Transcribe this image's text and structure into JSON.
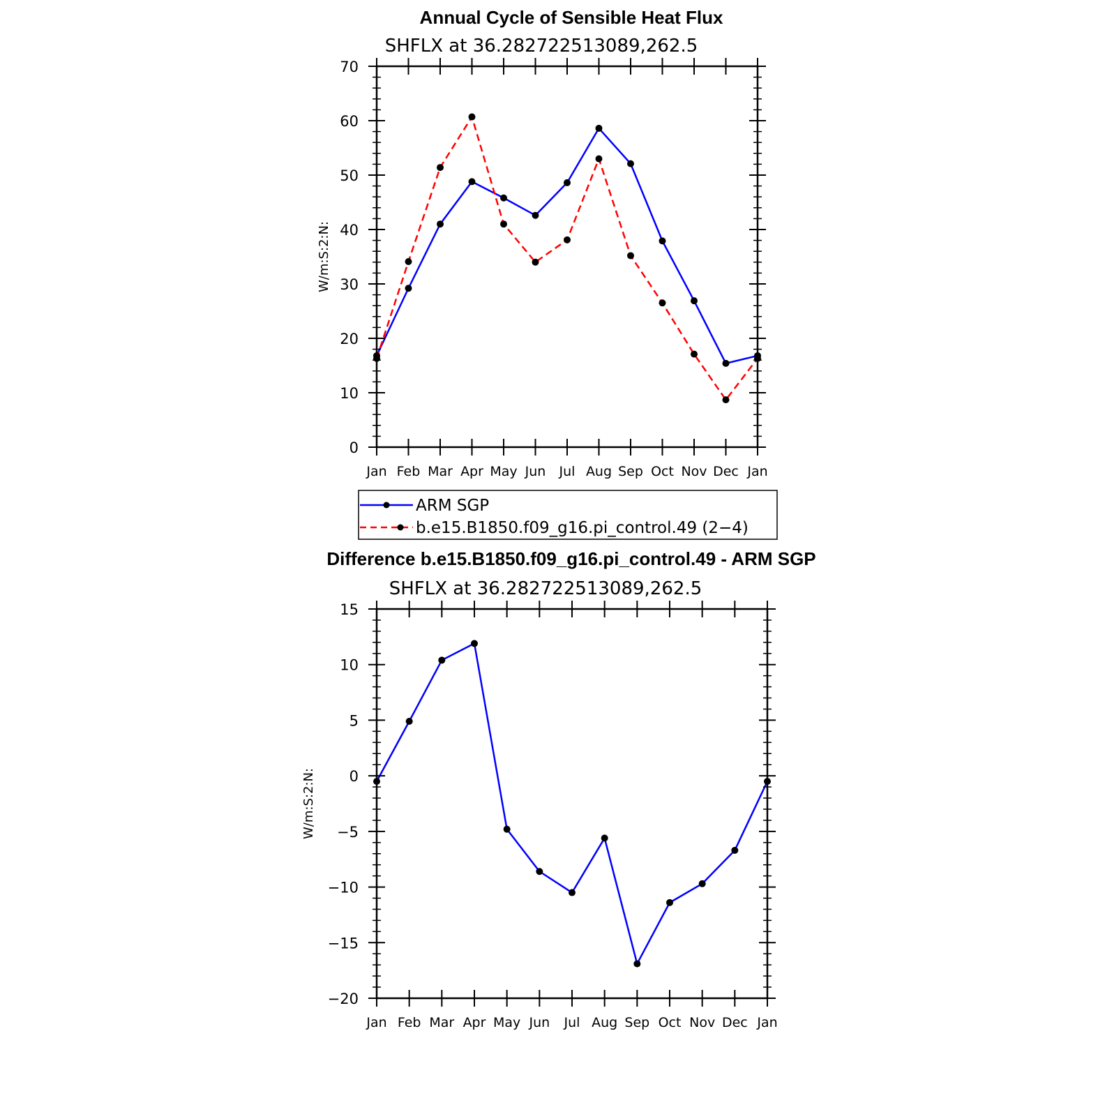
{
  "chart_data": [
    {
      "type": "line",
      "title": "Annual Cycle of Sensible Heat Flux",
      "subtitle": "SHFLX at 36.282722513089,262.5",
      "ylabel": "W/m:S:2:N:",
      "xlabel": "",
      "ylim": [
        0,
        70
      ],
      "yticks": [
        0,
        10,
        20,
        30,
        40,
        50,
        60,
        70
      ],
      "ytick_labels": [
        "0",
        "10",
        "20",
        "30",
        "40",
        "50",
        "60",
        "70"
      ],
      "categories": [
        "Jan",
        "Feb",
        "Mar",
        "Apr",
        "May",
        "Jun",
        "Jul",
        "Aug",
        "Sep",
        "Oct",
        "Nov",
        "Dec",
        "Jan"
      ],
      "series": [
        {
          "name": "ARM SGP",
          "color": "#0000ff",
          "style": "solid",
          "values": [
            16.8,
            29.2,
            41.0,
            48.8,
            45.8,
            42.6,
            48.6,
            58.6,
            52.1,
            37.9,
            26.9,
            15.4,
            16.8
          ]
        },
        {
          "name": "b.e15.B1850.f09_g16.pi_control.49 (2−4)",
          "color": "#ff0000",
          "style": "dashed",
          "values": [
            16.3,
            34.1,
            51.4,
            60.7,
            41.0,
            34.0,
            38.1,
            53.0,
            35.2,
            26.5,
            17.1,
            8.7,
            16.3
          ]
        }
      ]
    },
    {
      "type": "line",
      "title": "Difference b.e15.B1850.f09_g16.pi_control.49 - ARM SGP",
      "subtitle": "SHFLX at 36.282722513089,262.5",
      "ylabel": "W/m:S:2:N:",
      "xlabel": "",
      "ylim": [
        -20,
        15
      ],
      "yticks": [
        -20,
        -15,
        -10,
        -5,
        0,
        5,
        10,
        15
      ],
      "ytick_labels": [
        "−20",
        "−15",
        "−10",
        "−5",
        "0",
        "5",
        "10",
        "15"
      ],
      "categories": [
        "Jan",
        "Feb",
        "Mar",
        "Apr",
        "May",
        "Jun",
        "Jul",
        "Aug",
        "Sep",
        "Oct",
        "Nov",
        "Dec",
        "Jan"
      ],
      "series": [
        {
          "name": "Difference",
          "color": "#0000ff",
          "style": "solid",
          "values": [
            -0.5,
            4.9,
            10.4,
            11.9,
            -4.8,
            -8.6,
            -10.5,
            -5.6,
            -16.9,
            -11.4,
            -9.7,
            -6.7,
            -0.5
          ]
        }
      ]
    }
  ]
}
